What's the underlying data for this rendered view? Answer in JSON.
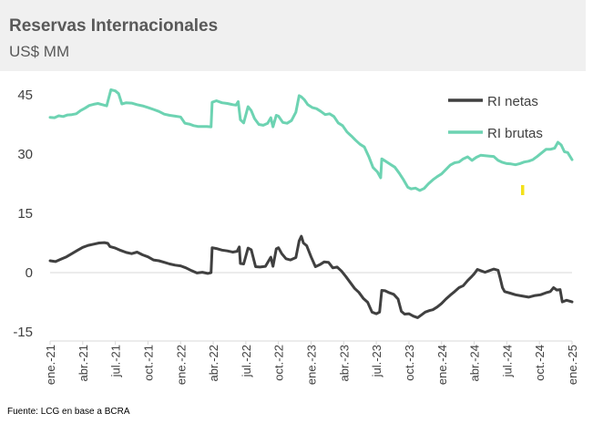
{
  "header": {
    "title": "Reservas Internacionales",
    "subtitle": "US$ MM"
  },
  "source": "Fuente: LCG en base a BCRA",
  "chart_data": {
    "type": "line",
    "title": "Reservas Internacionales",
    "ylabel": "US$ MM",
    "ylim": [
      -15,
      45
    ],
    "yticks": [
      -15,
      0,
      15,
      30,
      45
    ],
    "xlim": [
      0,
      48
    ],
    "xticks": [
      {
        "pos": 0,
        "label": "ene.-21"
      },
      {
        "pos": 3,
        "label": "abr.-21"
      },
      {
        "pos": 6,
        "label": "jul.-21"
      },
      {
        "pos": 9,
        "label": "oct.-21"
      },
      {
        "pos": 12,
        "label": "ene.-22"
      },
      {
        "pos": 15,
        "label": "abr.-22"
      },
      {
        "pos": 18,
        "label": "jul.-22"
      },
      {
        "pos": 21,
        "label": "oct.-22"
      },
      {
        "pos": 24,
        "label": "ene.-23"
      },
      {
        "pos": 27,
        "label": "abr.-23"
      },
      {
        "pos": 30,
        "label": "jul.-23"
      },
      {
        "pos": 33,
        "label": "oct.-23"
      },
      {
        "pos": 36,
        "label": "ene.-24"
      },
      {
        "pos": 39,
        "label": "abr.-24"
      },
      {
        "pos": 42,
        "label": "jul.-24"
      },
      {
        "pos": 45,
        "label": "oct.-24"
      },
      {
        "pos": 48,
        "label": "ene.-25"
      }
    ],
    "legend_position": "top-right",
    "series": [
      {
        "name": "RI netas",
        "color": "#404040",
        "points": [
          [
            0,
            3.0
          ],
          [
            0.5,
            2.8
          ],
          [
            1,
            3.4
          ],
          [
            1.5,
            4.0
          ],
          [
            2,
            4.8
          ],
          [
            2.5,
            5.6
          ],
          [
            3,
            6.4
          ],
          [
            3.5,
            6.9
          ],
          [
            4,
            7.2
          ],
          [
            4.5,
            7.5
          ],
          [
            5,
            7.6
          ],
          [
            5.3,
            7.4
          ],
          [
            5.5,
            6.6
          ],
          [
            6,
            6.2
          ],
          [
            6.5,
            5.6
          ],
          [
            7,
            5.1
          ],
          [
            7.5,
            4.8
          ],
          [
            8,
            5.2
          ],
          [
            8.5,
            4.5
          ],
          [
            9,
            4.0
          ],
          [
            9.5,
            3.2
          ],
          [
            10,
            3.0
          ],
          [
            10.5,
            2.6
          ],
          [
            11,
            2.2
          ],
          [
            11.5,
            1.9
          ],
          [
            12,
            1.7
          ],
          [
            12.5,
            1.2
          ],
          [
            13,
            0.5
          ],
          [
            13.5,
            -0.1
          ],
          [
            14,
            0.1
          ],
          [
            14.5,
            -0.2
          ],
          [
            14.8,
            0.0
          ],
          [
            14.9,
            6.3
          ],
          [
            15.3,
            6.1
          ],
          [
            15.8,
            5.7
          ],
          [
            16.3,
            5.5
          ],
          [
            16.8,
            5.2
          ],
          [
            17.2,
            5.4
          ],
          [
            17.4,
            6.5
          ],
          [
            17.5,
            2.3
          ],
          [
            17.8,
            2.2
          ],
          [
            18.2,
            6.2
          ],
          [
            18.5,
            5.8
          ],
          [
            18.9,
            1.5
          ],
          [
            19.3,
            1.4
          ],
          [
            19.8,
            1.6
          ],
          [
            20.3,
            3.9
          ],
          [
            20.5,
            1.6
          ],
          [
            20.8,
            6.0
          ],
          [
            21.0,
            6.3
          ],
          [
            21.3,
            4.8
          ],
          [
            21.7,
            3.5
          ],
          [
            22.1,
            3.2
          ],
          [
            22.6,
            3.8
          ],
          [
            22.9,
            8.0
          ],
          [
            23.1,
            9.2
          ],
          [
            23.3,
            7.5
          ],
          [
            23.6,
            6.8
          ],
          [
            24.0,
            4.0
          ],
          [
            24.4,
            1.5
          ],
          [
            24.8,
            2.0
          ],
          [
            25.2,
            2.7
          ],
          [
            25.6,
            2.6
          ],
          [
            26.0,
            1.2
          ],
          [
            26.4,
            1.4
          ],
          [
            26.8,
            0.4
          ],
          [
            27.2,
            -1.0
          ],
          [
            27.6,
            -2.5
          ],
          [
            28.0,
            -4.0
          ],
          [
            28.4,
            -5.0
          ],
          [
            28.8,
            -6.5
          ],
          [
            29.2,
            -7.5
          ],
          [
            29.6,
            -10.0
          ],
          [
            30.0,
            -10.4
          ],
          [
            30.3,
            -10.0
          ],
          [
            30.5,
            -4.5
          ],
          [
            30.8,
            -4.6
          ],
          [
            31.2,
            -5.1
          ],
          [
            31.6,
            -5.5
          ],
          [
            32.0,
            -6.7
          ],
          [
            32.3,
            -9.8
          ],
          [
            32.6,
            -10.5
          ],
          [
            33.0,
            -10.4
          ],
          [
            33.4,
            -11.0
          ],
          [
            33.8,
            -11.4
          ],
          [
            34.1,
            -10.8
          ],
          [
            34.5,
            -10.0
          ],
          [
            34.9,
            -9.6
          ],
          [
            35.2,
            -9.4
          ],
          [
            35.6,
            -8.7
          ],
          [
            36.0,
            -7.8
          ],
          [
            36.4,
            -6.7
          ],
          [
            36.8,
            -5.7
          ],
          [
            37.2,
            -4.8
          ],
          [
            37.6,
            -3.8
          ],
          [
            38.0,
            -3.3
          ],
          [
            38.4,
            -2.0
          ],
          [
            38.8,
            -0.9
          ],
          [
            39.0,
            -0.3
          ],
          [
            39.3,
            0.8
          ],
          [
            39.7,
            0.4
          ],
          [
            40.0,
            0.1
          ],
          [
            40.4,
            0.5
          ],
          [
            40.8,
            0.9
          ],
          [
            41.2,
            0.6
          ],
          [
            41.4,
            -1.5
          ],
          [
            41.6,
            -3.8
          ],
          [
            41.8,
            -4.8
          ],
          [
            42.3,
            -5.2
          ],
          [
            42.8,
            -5.6
          ],
          [
            43.4,
            -5.9
          ],
          [
            44.0,
            -6.2
          ],
          [
            44.6,
            -5.8
          ],
          [
            45.1,
            -5.6
          ],
          [
            45.6,
            -5.1
          ],
          [
            46.0,
            -4.8
          ],
          [
            46.3,
            -3.8
          ],
          [
            46.6,
            -4.4
          ],
          [
            46.9,
            -4.3
          ],
          [
            47.1,
            -7.4
          ],
          [
            47.5,
            -7.0
          ],
          [
            48.0,
            -7.4
          ]
        ]
      },
      {
        "name": "RI brutas",
        "color": "#6dd3b2",
        "points": [
          [
            0,
            39.3
          ],
          [
            0.4,
            39.2
          ],
          [
            0.8,
            39.7
          ],
          [
            1.2,
            39.5
          ],
          [
            1.6,
            39.9
          ],
          [
            2.0,
            40.0
          ],
          [
            2.4,
            40.2
          ],
          [
            2.8,
            41.0
          ],
          [
            3.2,
            41.6
          ],
          [
            3.6,
            42.3
          ],
          [
            4.0,
            42.6
          ],
          [
            4.4,
            42.8
          ],
          [
            4.8,
            42.5
          ],
          [
            5.2,
            42.2
          ],
          [
            5.6,
            46.3
          ],
          [
            6.0,
            46.0
          ],
          [
            6.3,
            45.3
          ],
          [
            6.6,
            42.7
          ],
          [
            7.0,
            43.0
          ],
          [
            7.5,
            42.9
          ],
          [
            8.0,
            42.5
          ],
          [
            8.5,
            42.2
          ],
          [
            9.0,
            41.8
          ],
          [
            9.5,
            41.3
          ],
          [
            10.0,
            40.8
          ],
          [
            10.5,
            40.1
          ],
          [
            11.0,
            39.8
          ],
          [
            11.5,
            39.6
          ],
          [
            12.0,
            39.4
          ],
          [
            12.4,
            37.8
          ],
          [
            12.8,
            37.6
          ],
          [
            13.2,
            37.2
          ],
          [
            13.6,
            37.0
          ],
          [
            14.0,
            37.0
          ],
          [
            14.4,
            37.0
          ],
          [
            14.8,
            36.9
          ],
          [
            14.9,
            43.1
          ],
          [
            15.3,
            43.5
          ],
          [
            15.8,
            43.0
          ],
          [
            16.3,
            42.8
          ],
          [
            16.8,
            42.5
          ],
          [
            17.1,
            42.4
          ],
          [
            17.3,
            43.3
          ],
          [
            17.5,
            38.7
          ],
          [
            17.8,
            37.9
          ],
          [
            18.2,
            42.0
          ],
          [
            18.5,
            41.0
          ],
          [
            18.8,
            39.0
          ],
          [
            19.2,
            37.5
          ],
          [
            19.6,
            37.3
          ],
          [
            20.0,
            37.8
          ],
          [
            20.3,
            39.2
          ],
          [
            20.5,
            36.9
          ],
          [
            20.8,
            39.8
          ],
          [
            21.0,
            39.6
          ],
          [
            21.4,
            38.0
          ],
          [
            21.8,
            37.8
          ],
          [
            22.2,
            38.5
          ],
          [
            22.6,
            40.6
          ],
          [
            22.9,
            44.8
          ],
          [
            23.1,
            44.5
          ],
          [
            23.4,
            43.7
          ],
          [
            23.7,
            42.5
          ],
          [
            24.1,
            41.8
          ],
          [
            24.5,
            41.5
          ],
          [
            24.9,
            40.8
          ],
          [
            25.3,
            40.0
          ],
          [
            25.7,
            40.2
          ],
          [
            26.1,
            39.5
          ],
          [
            26.5,
            37.9
          ],
          [
            26.9,
            37.2
          ],
          [
            27.3,
            35.6
          ],
          [
            27.7,
            34.6
          ],
          [
            28.1,
            33.5
          ],
          [
            28.5,
            32.5
          ],
          [
            28.9,
            31.8
          ],
          [
            29.3,
            29.4
          ],
          [
            29.7,
            26.6
          ],
          [
            30.1,
            25.5
          ],
          [
            30.4,
            24.0
          ],
          [
            30.5,
            28.8
          ],
          [
            30.9,
            28.1
          ],
          [
            31.3,
            27.4
          ],
          [
            31.7,
            26.7
          ],
          [
            32.1,
            25.2
          ],
          [
            32.5,
            23.5
          ],
          [
            32.9,
            21.6
          ],
          [
            33.2,
            21.2
          ],
          [
            33.6,
            21.4
          ],
          [
            34.0,
            20.8
          ],
          [
            34.4,
            21.3
          ],
          [
            34.8,
            22.5
          ],
          [
            35.2,
            23.5
          ],
          [
            35.6,
            24.3
          ],
          [
            36.0,
            25.0
          ],
          [
            36.4,
            26.1
          ],
          [
            36.8,
            27.2
          ],
          [
            37.2,
            27.8
          ],
          [
            37.6,
            28.0
          ],
          [
            38.0,
            28.8
          ],
          [
            38.4,
            29.3
          ],
          [
            38.8,
            28.4
          ],
          [
            39.2,
            29.2
          ],
          [
            39.6,
            29.7
          ],
          [
            40.0,
            29.6
          ],
          [
            40.4,
            29.5
          ],
          [
            40.8,
            29.4
          ],
          [
            41.2,
            28.4
          ],
          [
            41.6,
            27.9
          ],
          [
            42.0,
            27.6
          ],
          [
            42.4,
            27.5
          ],
          [
            42.8,
            27.3
          ],
          [
            43.2,
            27.6
          ],
          [
            43.6,
            28.0
          ],
          [
            44.0,
            28.2
          ],
          [
            44.4,
            28.6
          ],
          [
            44.8,
            29.4
          ],
          [
            45.2,
            30.3
          ],
          [
            45.6,
            31.2
          ],
          [
            46.0,
            31.2
          ],
          [
            46.4,
            31.5
          ],
          [
            46.7,
            33.0
          ],
          [
            47.0,
            32.3
          ],
          [
            47.3,
            30.6
          ],
          [
            47.6,
            30.4
          ],
          [
            48.0,
            28.6
          ]
        ]
      }
    ]
  }
}
